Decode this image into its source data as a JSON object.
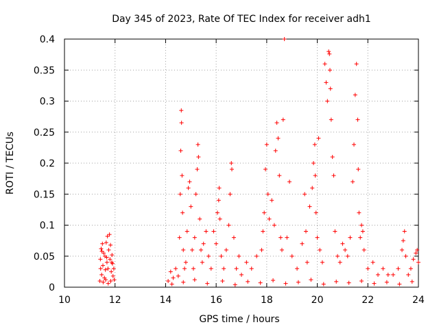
{
  "chart_data": {
    "type": "scatter",
    "title": "Day 345 of 2023, Rate Of TEC Index for receiver adh1",
    "xlabel": "GPS time / hours",
    "ylabel": "ROTI / TECUs",
    "xlim": [
      10,
      24
    ],
    "ylim": [
      0,
      0.4
    ],
    "x_ticks": [
      10,
      12,
      14,
      16,
      18,
      20,
      22,
      24
    ],
    "y_ticks": [
      0,
      0.05,
      0.1,
      0.15,
      0.2,
      0.25,
      0.3,
      0.35,
      0.4
    ],
    "x_tick_labels": [
      "10",
      "12",
      "14",
      "16",
      "18",
      "20",
      "22",
      "24"
    ],
    "y_tick_labels": [
      "0",
      "0.05",
      "0.1",
      "0.15",
      "0.2",
      "0.25",
      "0.3",
      "0.35",
      "0.4"
    ],
    "grid": true,
    "marker": "plus",
    "color": "#ff0000",
    "series": [
      {
        "points": [
          [
            11.4,
            0.01
          ],
          [
            11.42,
            0.045
          ],
          [
            11.45,
            0.062
          ],
          [
            11.47,
            0.02
          ],
          [
            11.5,
            0.07
          ],
          [
            11.52,
            0.035
          ],
          [
            11.55,
            0.055
          ],
          [
            11.58,
            0.015
          ],
          [
            11.6,
            0.05
          ],
          [
            11.62,
            0.028
          ],
          [
            11.65,
            0.072
          ],
          [
            11.68,
            0.04
          ],
          [
            11.7,
            0.082
          ],
          [
            11.72,
            0.03
          ],
          [
            11.75,
            0.06
          ],
          [
            11.78,
            0.085
          ],
          [
            11.8,
            0.045
          ],
          [
            11.82,
            0.068
          ],
          [
            11.85,
            0.025
          ],
          [
            11.88,
            0.052
          ],
          [
            11.9,
            0.038
          ],
          [
            11.92,
            0.018
          ],
          [
            11.95,
            0.03
          ],
          [
            11.97,
            0.012
          ],
          [
            11.43,
            0.03
          ],
          [
            11.53,
            0.008
          ],
          [
            11.63,
            0.012
          ],
          [
            11.73,
            0.006
          ],
          [
            11.83,
            0.01
          ],
          [
            11.48,
            0.058
          ],
          [
            11.67,
            0.048
          ],
          [
            11.87,
            0.04
          ],
          [
            14.1,
            0.01
          ],
          [
            14.2,
            0.025
          ],
          [
            14.3,
            0.015
          ],
          [
            14.4,
            0.03
          ],
          [
            14.5,
            0.018
          ],
          [
            14.55,
            0.08
          ],
          [
            14.58,
            0.15
          ],
          [
            14.6,
            0.22
          ],
          [
            14.62,
            0.285
          ],
          [
            14.63,
            0.265
          ],
          [
            14.65,
            0.18
          ],
          [
            14.67,
            0.12
          ],
          [
            14.7,
            0.06
          ],
          [
            14.75,
            0.03
          ],
          [
            14.8,
            0.04
          ],
          [
            14.85,
            0.09
          ],
          [
            14.9,
            0.16
          ],
          [
            14.95,
            0.17
          ],
          [
            15.0,
            0.13
          ],
          [
            15.05,
            0.06
          ],
          [
            15.1,
            0.03
          ],
          [
            15.15,
            0.08
          ],
          [
            15.2,
            0.15
          ],
          [
            15.25,
            0.19
          ],
          [
            15.28,
            0.23
          ],
          [
            15.3,
            0.21
          ],
          [
            15.35,
            0.11
          ],
          [
            15.4,
            0.06
          ],
          [
            15.45,
            0.04
          ],
          [
            15.5,
            0.07
          ],
          [
            15.6,
            0.09
          ],
          [
            15.7,
            0.05
          ],
          [
            15.8,
            0.03
          ],
          [
            15.9,
            0.09
          ],
          [
            16.0,
            0.07
          ],
          [
            16.05,
            0.12
          ],
          [
            16.1,
            0.14
          ],
          [
            16.12,
            0.16
          ],
          [
            16.15,
            0.11
          ],
          [
            16.2,
            0.05
          ],
          [
            16.3,
            0.03
          ],
          [
            16.4,
            0.06
          ],
          [
            16.5,
            0.1
          ],
          [
            16.55,
            0.15
          ],
          [
            16.6,
            0.2
          ],
          [
            16.62,
            0.19
          ],
          [
            16.7,
            0.08
          ],
          [
            16.8,
            0.03
          ],
          [
            16.9,
            0.05
          ],
          [
            17.0,
            0.02
          ],
          [
            17.2,
            0.04
          ],
          [
            17.4,
            0.03
          ],
          [
            17.6,
            0.05
          ],
          [
            17.8,
            0.06
          ],
          [
            17.85,
            0.09
          ],
          [
            17.9,
            0.12
          ],
          [
            17.95,
            0.19
          ],
          [
            18.0,
            0.23
          ],
          [
            18.05,
            0.15
          ],
          [
            18.1,
            0.11
          ],
          [
            18.2,
            0.14
          ],
          [
            18.3,
            0.1
          ],
          [
            18.35,
            0.22
          ],
          [
            18.4,
            0.265
          ],
          [
            18.45,
            0.24
          ],
          [
            18.5,
            0.18
          ],
          [
            18.55,
            0.08
          ],
          [
            18.6,
            0.06
          ],
          [
            18.65,
            0.27
          ],
          [
            18.7,
            0.4
          ],
          [
            18.8,
            0.08
          ],
          [
            18.9,
            0.17
          ],
          [
            19.0,
            0.05
          ],
          [
            19.2,
            0.03
          ],
          [
            19.4,
            0.07
          ],
          [
            19.5,
            0.15
          ],
          [
            19.55,
            0.09
          ],
          [
            19.6,
            0.04
          ],
          [
            19.7,
            0.13
          ],
          [
            19.8,
            0.16
          ],
          [
            19.85,
            0.2
          ],
          [
            19.9,
            0.23
          ],
          [
            19.92,
            0.18
          ],
          [
            19.95,
            0.12
          ],
          [
            20.0,
            0.08
          ],
          [
            20.05,
            0.24
          ],
          [
            20.1,
            0.06
          ],
          [
            20.2,
            0.04
          ],
          [
            20.3,
            0.36
          ],
          [
            20.35,
            0.33
          ],
          [
            20.4,
            0.3
          ],
          [
            20.45,
            0.38
          ],
          [
            20.48,
            0.376
          ],
          [
            20.5,
            0.35
          ],
          [
            20.52,
            0.32
          ],
          [
            20.55,
            0.27
          ],
          [
            20.6,
            0.21
          ],
          [
            20.65,
            0.18
          ],
          [
            20.7,
            0.09
          ],
          [
            20.8,
            0.05
          ],
          [
            20.9,
            0.04
          ],
          [
            21.0,
            0.07
          ],
          [
            21.1,
            0.06
          ],
          [
            21.2,
            0.05
          ],
          [
            21.3,
            0.08
          ],
          [
            21.4,
            0.17
          ],
          [
            21.45,
            0.23
          ],
          [
            21.5,
            0.31
          ],
          [
            21.55,
            0.36
          ],
          [
            21.6,
            0.27
          ],
          [
            21.62,
            0.19
          ],
          [
            21.65,
            0.12
          ],
          [
            21.7,
            0.08
          ],
          [
            21.75,
            0.1
          ],
          [
            21.8,
            0.09
          ],
          [
            21.85,
            0.06
          ],
          [
            22.0,
            0.03
          ],
          [
            22.2,
            0.04
          ],
          [
            22.4,
            0.02
          ],
          [
            22.6,
            0.03
          ],
          [
            22.8,
            0.02
          ],
          [
            23.0,
            0.02
          ],
          [
            23.2,
            0.03
          ],
          [
            23.35,
            0.06
          ],
          [
            23.4,
            0.075
          ],
          [
            23.45,
            0.09
          ],
          [
            23.5,
            0.05
          ],
          [
            23.6,
            0.02
          ],
          [
            23.7,
            0.03
          ],
          [
            23.8,
            0.045
          ],
          [
            23.9,
            0.055
          ],
          [
            23.95,
            0.06
          ],
          [
            24.0,
            0.04
          ],
          [
            14.25,
            0.005
          ],
          [
            14.7,
            0.008
          ],
          [
            15.15,
            0.012
          ],
          [
            15.65,
            0.006
          ],
          [
            16.25,
            0.01
          ],
          [
            16.75,
            0.004
          ],
          [
            17.25,
            0.009
          ],
          [
            17.75,
            0.007
          ],
          [
            18.25,
            0.011
          ],
          [
            18.75,
            0.006
          ],
          [
            19.25,
            0.008
          ],
          [
            19.75,
            0.012
          ],
          [
            20.25,
            0.005
          ],
          [
            20.75,
            0.009
          ],
          [
            21.25,
            0.007
          ],
          [
            21.75,
            0.01
          ],
          [
            22.25,
            0.006
          ],
          [
            22.75,
            0.008
          ],
          [
            23.25,
            0.005
          ],
          [
            23.75,
            0.009
          ]
        ]
      }
    ]
  }
}
